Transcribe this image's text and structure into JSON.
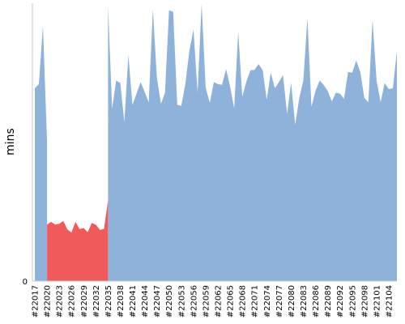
{
  "chart_data": {
    "type": "area",
    "title": "",
    "xlabel": "",
    "ylabel": "mins",
    "y_ticks_shown": [
      "0"
    ],
    "ylim": [
      0,
      100
    ],
    "grid": false,
    "x_tick_labels": [
      "#22017",
      "#22020",
      "#22023",
      "#22026",
      "#22029",
      "#22032",
      "#22035",
      "#22038",
      "#22041",
      "#22044",
      "#22047",
      "#22050",
      "#22053",
      "#22056",
      "#22059",
      "#22062",
      "#22065",
      "#22068",
      "#22071",
      "#22074",
      "#22077",
      "#22080",
      "#22083",
      "#22086",
      "#22089",
      "#22092",
      "#22095",
      "#22098",
      "#22101",
      "#22104"
    ],
    "x_start_build": 22017,
    "colors": {
      "success": "#8fb2db",
      "failure": "#f15a5a"
    },
    "series": [
      {
        "status": "success",
        "color": "#8fb2db",
        "x": [
          22017,
          22018,
          22019,
          22020
        ],
        "values": [
          69.4,
          70.9,
          91.9,
          50.0
        ]
      },
      {
        "status": "failure",
        "color": "#f15a5a",
        "x": [
          22020,
          22021,
          22022,
          22023,
          22024,
          22025,
          22026,
          22027,
          22028,
          22029,
          22030,
          22031,
          22032,
          22033,
          22034,
          22035
        ],
        "values": [
          20.3,
          21.3,
          20.3,
          20.6,
          21.6,
          18.6,
          17.5,
          21.3,
          18.7,
          19.1,
          17.6,
          20.9,
          20.3,
          18.4,
          18.8,
          29.0
        ]
      },
      {
        "status": "success",
        "color": "#8fb2db",
        "x": [
          22035,
          22036,
          22037,
          22038,
          22039,
          22040,
          22041,
          22042,
          22043,
          22044,
          22045,
          22046,
          22047,
          22048,
          22049,
          22050,
          22051,
          22052,
          22053,
          22054,
          22055,
          22056,
          22057,
          22058,
          22059,
          22060,
          22061,
          22062,
          22063,
          22064,
          22065,
          22066,
          22067,
          22068,
          22069,
          22070,
          22071,
          22072,
          22073,
          22074,
          22075,
          22076,
          22077,
          22078,
          22079,
          22080,
          22081,
          22082,
          22083,
          22084,
          22085,
          22086,
          22087,
          22088,
          22089,
          22090,
          22091,
          22092,
          22093,
          22094,
          22095,
          22096,
          22097,
          22098,
          22099,
          22100,
          22101,
          22102,
          22103,
          22104,
          22105,
          22106
        ],
        "values": [
          99.1,
          62.0,
          72.2,
          71.3,
          57.2,
          81.3,
          63.4,
          67.5,
          71.6,
          68.1,
          64.3,
          97.8,
          73.1,
          63.8,
          67.8,
          97.5,
          96.9,
          63.4,
          63.1,
          70.9,
          83.1,
          90.6,
          67.8,
          99.7,
          69.7,
          64.1,
          71.6,
          70.9,
          70.6,
          76.3,
          70.0,
          62.2,
          89.7,
          66.3,
          71.9,
          75.9,
          76.0,
          78.1,
          75.9,
          65.3,
          75.0,
          69.4,
          71.6,
          74.1,
          60.3,
          71.3,
          56.3,
          65.9,
          72.2,
          94.7,
          62.8,
          68.5,
          72.2,
          70.6,
          68.4,
          64.7,
          67.8,
          67.5,
          65.6,
          75.3,
          75.0,
          79.4,
          75.3,
          65.9,
          64.4,
          94.1,
          72.2,
          64.4,
          71.3,
          69.1,
          69.4,
          82.8
        ]
      }
    ]
  }
}
